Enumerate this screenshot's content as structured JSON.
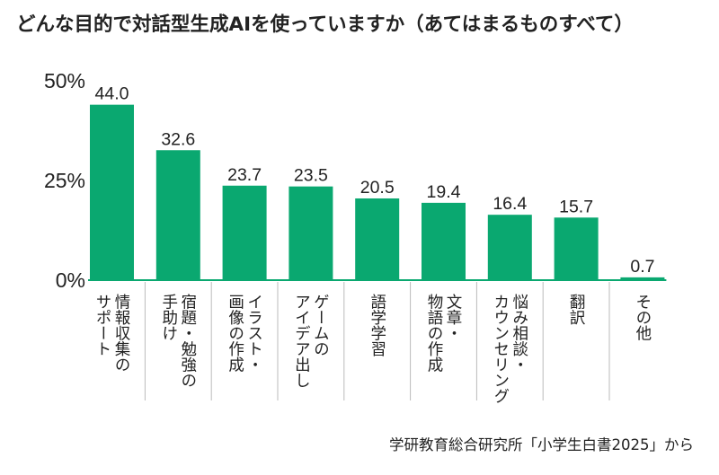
{
  "chart_data": {
    "type": "bar",
    "title": "どんな目的で対話型生成AIを使っていますか（あてはまるものすべて）",
    "categories": [
      [
        "情報収集の",
        "サポート"
      ],
      [
        "宿題・勉強の",
        "手助け"
      ],
      [
        "イラスト・",
        "画像の作成"
      ],
      [
        "ゲームの",
        "アイデア出し"
      ],
      [
        "語学学習"
      ],
      [
        "文章・",
        "物語の作成"
      ],
      [
        "悩み相談・",
        "カウンセリング"
      ],
      [
        "翻訳"
      ],
      [
        "その他"
      ]
    ],
    "values": [
      44.0,
      32.6,
      23.7,
      23.5,
      20.5,
      19.4,
      16.4,
      15.7,
      0.7
    ],
    "value_labels": [
      "44.0",
      "32.6",
      "23.7",
      "23.5",
      "20.5",
      "19.4",
      "16.4",
      "15.7",
      "0.7"
    ],
    "ylim": [
      0,
      50
    ],
    "yticks": [
      {
        "value": 50,
        "label": "50%"
      },
      {
        "value": 25,
        "label": "25%"
      },
      {
        "value": 0,
        "label": "0%"
      }
    ],
    "xlabel": "",
    "ylabel": "",
    "grid": false,
    "unit": "%"
  },
  "colors": {
    "bar": "#0aa870",
    "text": "#222222",
    "axis": "#0aa870",
    "separator": "#bbbbbb"
  },
  "source_note": "学研教育総合研究所「小学生白書2025」から"
}
